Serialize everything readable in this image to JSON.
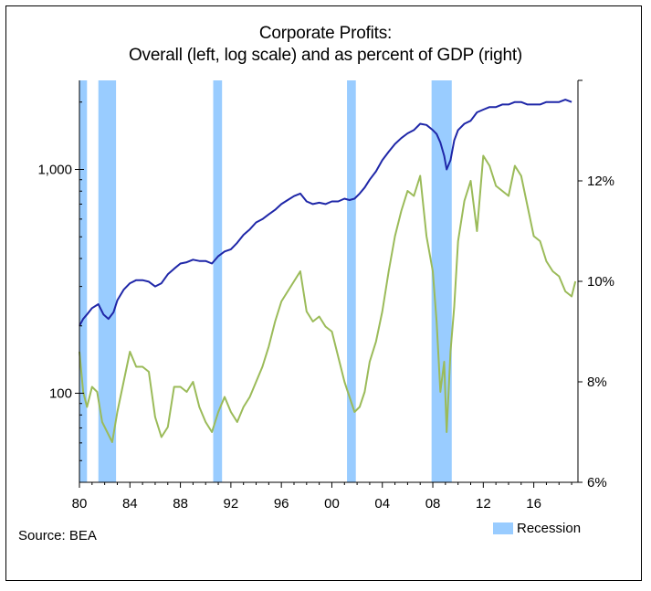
{
  "chart_data": {
    "type": "line",
    "title": "Corporate Profits:",
    "subtitle": "Overall (left, log scale) and as percent of GDP (right)",
    "x_tick_labels": [
      "80",
      "84",
      "88",
      "92",
      "96",
      "00",
      "04",
      "08",
      "12",
      "16"
    ],
    "x_tick_years": [
      1980,
      1984,
      1988,
      1992,
      1996,
      2000,
      2004,
      2008,
      2012,
      2016
    ],
    "xlim": [
      1980,
      2019.5
    ],
    "left_axis": {
      "scale": "log",
      "ylim": [
        40,
        2500
      ],
      "ticks": [
        100,
        1000
      ],
      "tick_labels": [
        "100",
        "1,000"
      ]
    },
    "right_axis": {
      "scale": "linear",
      "ylim": [
        6,
        14
      ],
      "ticks": [
        6,
        8,
        10,
        12
      ],
      "tick_labels": [
        "6%",
        "8%",
        "10%",
        "12%"
      ]
    },
    "recessions": [
      [
        1980.0,
        1980.6
      ],
      [
        1981.5,
        1982.9
      ],
      [
        1990.6,
        1991.3
      ],
      [
        2001.2,
        2001.9
      ],
      [
        2007.9,
        2009.5
      ]
    ],
    "legend": {
      "position": "bottom-right",
      "label": "Recession",
      "color": "#99ccff"
    },
    "series": [
      {
        "axis": "left",
        "color": "#1f27a8",
        "x": [
          1980.0,
          1980.3,
          1980.6,
          1981.0,
          1981.5,
          1981.9,
          1982.3,
          1982.7,
          1983.0,
          1983.5,
          1984.0,
          1984.5,
          1985.0,
          1985.5,
          1986.0,
          1986.5,
          1987.0,
          1987.5,
          1988.0,
          1988.5,
          1989.0,
          1989.5,
          1990.0,
          1990.5,
          1991.0,
          1991.5,
          1992.0,
          1992.5,
          1993.0,
          1993.5,
          1994.0,
          1994.5,
          1995.0,
          1995.5,
          1996.0,
          1996.5,
          1997.0,
          1997.5,
          1998.0,
          1998.5,
          1999.0,
          1999.5,
          2000.0,
          2000.5,
          2001.0,
          2001.4,
          2001.8,
          2002.2,
          2002.6,
          2003.0,
          2003.5,
          2004.0,
          2004.5,
          2005.0,
          2005.5,
          2006.0,
          2006.5,
          2007.0,
          2007.5,
          2008.0,
          2008.3,
          2008.6,
          2008.9,
          2009.1,
          2009.4,
          2009.7,
          2010.0,
          2010.5,
          2011.0,
          2011.5,
          2012.0,
          2012.5,
          2013.0,
          2013.5,
          2014.0,
          2014.5,
          2015.0,
          2015.5,
          2016.0,
          2016.5,
          2017.0,
          2017.5,
          2018.0,
          2018.5,
          2019.0
        ],
        "values": [
          200,
          215,
          225,
          240,
          250,
          225,
          215,
          230,
          260,
          290,
          310,
          320,
          320,
          315,
          300,
          310,
          340,
          360,
          380,
          385,
          395,
          390,
          390,
          380,
          410,
          430,
          440,
          470,
          510,
          540,
          580,
          600,
          630,
          660,
          700,
          730,
          760,
          780,
          720,
          700,
          710,
          700,
          720,
          720,
          740,
          730,
          740,
          780,
          830,
          900,
          980,
          1100,
          1200,
          1300,
          1380,
          1450,
          1500,
          1600,
          1580,
          1500,
          1440,
          1320,
          1150,
          1000,
          1100,
          1350,
          1500,
          1600,
          1650,
          1800,
          1850,
          1900,
          1900,
          1950,
          1950,
          2000,
          2000,
          1950,
          1950,
          1950,
          2000,
          2000,
          2000,
          2050,
          2000
        ]
      },
      {
        "axis": "right",
        "color": "#9bbb59",
        "x": [
          1980.0,
          1980.3,
          1980.6,
          1981.0,
          1981.4,
          1981.8,
          1982.2,
          1982.6,
          1983.0,
          1983.5,
          1984.0,
          1984.5,
          1985.0,
          1985.5,
          1986.0,
          1986.5,
          1987.0,
          1987.5,
          1988.0,
          1988.5,
          1989.0,
          1989.5,
          1990.0,
          1990.5,
          1991.0,
          1991.5,
          1992.0,
          1992.5,
          1993.0,
          1993.5,
          1994.0,
          1994.5,
          1995.0,
          1995.5,
          1996.0,
          1996.5,
          1997.0,
          1997.5,
          1998.0,
          1998.5,
          1999.0,
          1999.5,
          2000.0,
          2000.5,
          2001.0,
          2001.4,
          2001.8,
          2002.2,
          2002.6,
          2003.0,
          2003.5,
          2004.0,
          2004.5,
          2005.0,
          2005.5,
          2006.0,
          2006.5,
          2007.0,
          2007.5,
          2008.0,
          2008.3,
          2008.6,
          2008.9,
          2009.1,
          2009.4,
          2009.7,
          2010.0,
          2010.5,
          2011.0,
          2011.5,
          2012.0,
          2012.5,
          2013.0,
          2013.5,
          2014.0,
          2014.5,
          2015.0,
          2015.5,
          2016.0,
          2016.5,
          2017.0,
          2017.5,
          2018.0,
          2018.5,
          2019.0,
          2019.3
        ],
        "values": [
          8.6,
          7.8,
          7.5,
          7.9,
          7.8,
          7.2,
          7.0,
          6.8,
          7.4,
          8.0,
          8.6,
          8.3,
          8.3,
          8.2,
          7.3,
          6.9,
          7.1,
          7.9,
          7.9,
          7.8,
          8.0,
          7.5,
          7.2,
          7.0,
          7.4,
          7.7,
          7.4,
          7.2,
          7.5,
          7.7,
          8.0,
          8.3,
          8.7,
          9.2,
          9.6,
          9.8,
          10.0,
          10.2,
          9.4,
          9.2,
          9.3,
          9.1,
          9.0,
          8.5,
          8.0,
          7.7,
          7.4,
          7.5,
          7.8,
          8.4,
          8.8,
          9.4,
          10.2,
          10.9,
          11.4,
          11.8,
          11.7,
          12.1,
          10.9,
          10.2,
          9.2,
          7.8,
          8.4,
          7.0,
          8.6,
          9.5,
          10.8,
          11.6,
          12.0,
          11.0,
          12.5,
          12.3,
          11.9,
          11.8,
          11.7,
          12.3,
          12.1,
          11.5,
          10.9,
          10.8,
          10.4,
          10.2,
          10.1,
          9.8,
          9.7,
          10.0
        ]
      }
    ]
  },
  "source_text": "Source: BEA"
}
